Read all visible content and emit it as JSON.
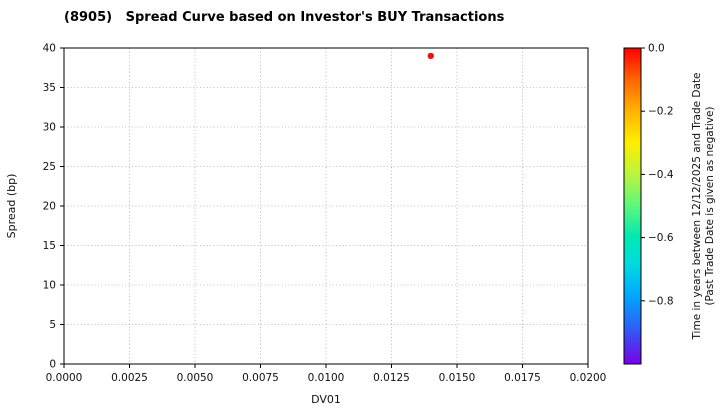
{
  "chart_data": {
    "type": "scatter",
    "title": "(8905)   Spread Curve based on Investor's BUY Transactions",
    "xlabel": "DV01",
    "ylabel": "Spread (bp)",
    "xlim": [
      0.0,
      0.02
    ],
    "ylim": [
      0,
      40
    ],
    "grid": true,
    "legend": false,
    "xticks": [
      0.0,
      0.0025,
      0.005,
      0.0075,
      0.01,
      0.0125,
      0.015,
      0.0175,
      0.02
    ],
    "xtick_labels": [
      "0.0000",
      "0.0025",
      "0.0050",
      "0.0075",
      "0.0100",
      "0.0125",
      "0.0150",
      "0.0175",
      "0.0200"
    ],
    "yticks": [
      0,
      5,
      10,
      15,
      20,
      25,
      30,
      35,
      40
    ],
    "ytick_labels": [
      "0",
      "5",
      "10",
      "15",
      "20",
      "25",
      "30",
      "35",
      "40"
    ],
    "points": [
      {
        "x": 0.014,
        "y": 39,
        "color_value": 0.0,
        "color": "#ee1111"
      }
    ],
    "colorbar": {
      "orientation": "vertical",
      "range_top": 0.0,
      "range_bottom": -1.0,
      "tick_values": [
        0.0,
        -0.2,
        -0.4,
        -0.6,
        -0.8
      ],
      "tick_labels": [
        "0.0",
        "−0.2",
        "−0.4",
        "−0.6",
        "−0.8"
      ],
      "label_line1": "Time in years between 12/12/2025 and Trade Date",
      "label_line2": "(Past Trade Date is given as negative)",
      "gradient": [
        {
          "pos": 0.0,
          "color": "#ff0000"
        },
        {
          "pos": 0.1,
          "color": "#ff6600"
        },
        {
          "pos": 0.2,
          "color": "#ffb300"
        },
        {
          "pos": 0.3,
          "color": "#ffee00"
        },
        {
          "pos": 0.4,
          "color": "#baf53f"
        },
        {
          "pos": 0.5,
          "color": "#5cf77d"
        },
        {
          "pos": 0.6,
          "color": "#00e8b5"
        },
        {
          "pos": 0.68,
          "color": "#00dcdc"
        },
        {
          "pos": 0.78,
          "color": "#00aaff"
        },
        {
          "pos": 0.88,
          "color": "#2a64f5"
        },
        {
          "pos": 1.0,
          "color": "#7a00e6"
        }
      ]
    }
  }
}
